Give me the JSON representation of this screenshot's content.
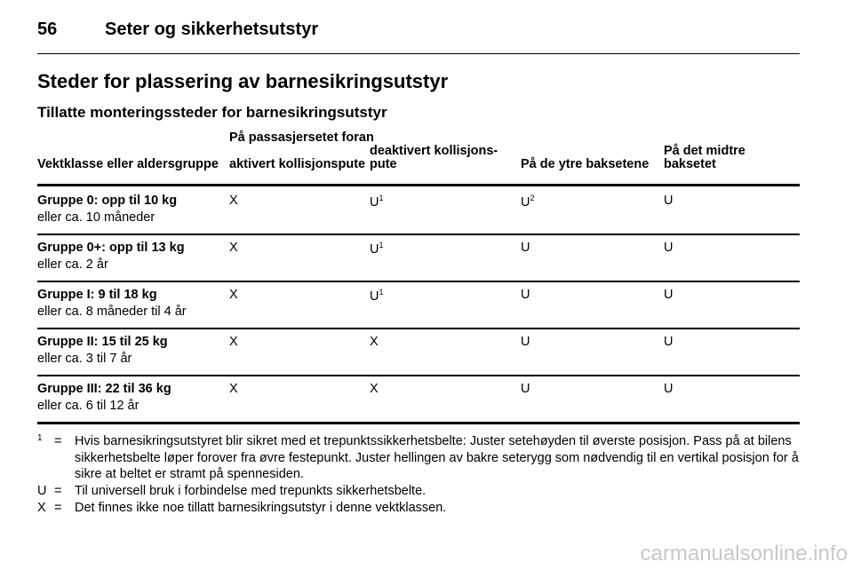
{
  "header": {
    "page_number": "56",
    "title": "Seter og sikkerhetsutstyr"
  },
  "section": {
    "title": "Steder for plassering av barnesikringsutstyr",
    "subtitle": "Tillatte monteringssteder for barnesikringsutstyr"
  },
  "table": {
    "group_header": "På passasjersetet foran",
    "columns": [
      "Vektklasse eller aldersgruppe",
      "aktivert kollisjonspute",
      "deaktivert kollisjons-pute",
      "På de ytre baksetene",
      "På det midtre baksetet"
    ],
    "rows": [
      [
        {
          "title": "Gruppe 0: opp til 10 kg",
          "detail": "eller ca. 10 måneder"
        },
        {
          "text": "X"
        },
        {
          "text": "U",
          "sup": "1"
        },
        {
          "text": "U",
          "sup": "2"
        },
        {
          "text": "U"
        }
      ],
      [
        {
          "title": "Gruppe 0+: opp til 13 kg",
          "detail": "eller ca. 2 år"
        },
        {
          "text": "X"
        },
        {
          "text": "U",
          "sup": "1"
        },
        {
          "text": "U"
        },
        {
          "text": "U"
        }
      ],
      [
        {
          "title": "Gruppe I: 9 til 18 kg",
          "detail": "eller ca. 8 måneder til 4 år"
        },
        {
          "text": "X"
        },
        {
          "text": "U",
          "sup": "1"
        },
        {
          "text": "U"
        },
        {
          "text": "U"
        }
      ],
      [
        {
          "title": "Gruppe II: 15 til 25 kg",
          "detail": "eller ca. 3 til 7 år"
        },
        {
          "text": "X"
        },
        {
          "text": "X"
        },
        {
          "text": "U"
        },
        {
          "text": "U"
        }
      ],
      [
        {
          "title": "Gruppe III: 22 til 36 kg",
          "detail": "eller ca. 6 til 12 år"
        },
        {
          "text": "X"
        },
        {
          "text": "X"
        },
        {
          "text": "U"
        },
        {
          "text": "U"
        }
      ]
    ]
  },
  "notes": [
    {
      "key": "1",
      "sep": "=",
      "text": "Hvis barnesikringsutstyret blir sikret med et trepunktssikkerhetsbelte: Juster setehøyden til øverste posisjon. Pass på at bilens sikkerhetsbelte løper forover fra øvre festepunkt. Juster hellingen av bakre seterygg som nødvendig til en vertikal posisjon for å sikre at beltet er stramt på spennesiden."
    },
    {
      "key": "U",
      "sep": "=",
      "text": "Til universell bruk i forbindelse med trepunkts sikkerhetsbelte."
    },
    {
      "key": "X",
      "sep": "=",
      "text": "Det finnes ikke noe tillatt barnesikringsutstyr i denne vektklassen."
    }
  ],
  "watermark": "carmanualsonline.info"
}
